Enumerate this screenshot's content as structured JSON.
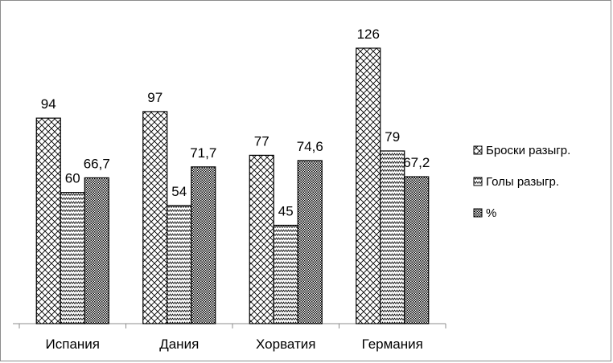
{
  "chart_data": {
    "type": "bar",
    "categories": [
      "Испания",
      "Дания",
      "Хорватия",
      "Германия"
    ],
    "series": [
      {
        "name": "Броски разыгр.",
        "values": [
          94,
          97,
          77,
          126
        ],
        "labels": [
          "94",
          "97",
          "77",
          "126"
        ],
        "pattern": "diag-cross"
      },
      {
        "name": "Голы разыгр.",
        "values": [
          60,
          54,
          45,
          79
        ],
        "labels": [
          "60",
          "54",
          "45",
          "79"
        ],
        "pattern": "zigzag"
      },
      {
        "name": "%",
        "values": [
          66.7,
          71.7,
          74.6,
          67.2
        ],
        "labels": [
          "66,7",
          "71,7",
          "74,6",
          "67,2"
        ],
        "pattern": "dotted"
      }
    ],
    "ylim": [
      0,
      140
    ],
    "grid": false,
    "legend_position": "right",
    "colors": {
      "bar_fill": "#ffffff",
      "bar_stroke": "#000000",
      "pattern_ink": "#000000",
      "frame": "#8c8c8c"
    }
  }
}
